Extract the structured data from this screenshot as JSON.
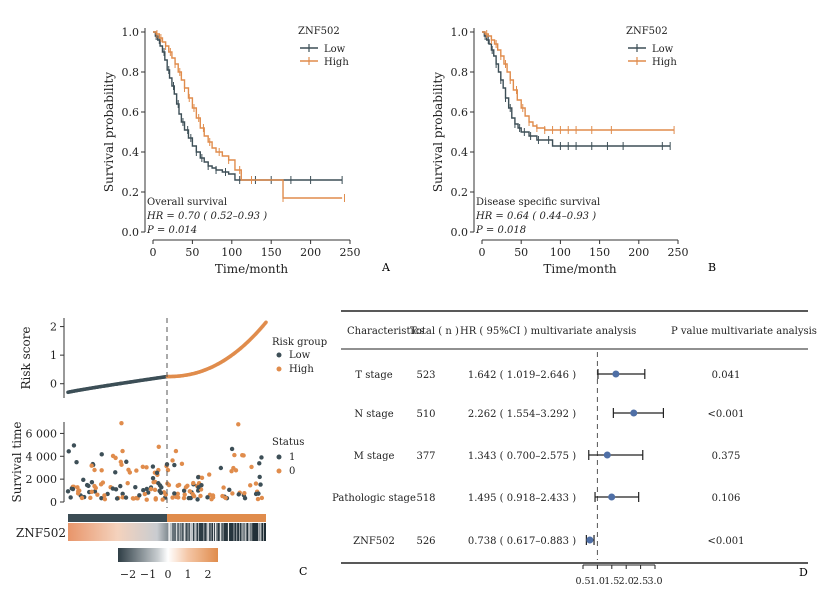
{
  "panel_labels": {
    "a": "A",
    "b": "B",
    "c": "C",
    "d": "D"
  },
  "colors": {
    "low": "#3d4f57",
    "high": "#e08c4c",
    "axis": "#333333",
    "ref": "#555555",
    "point": "#4f6fa6"
  },
  "chart_data": [
    {
      "type": "line",
      "panel": "A",
      "xlabel": "Time/month",
      "ylabel": "Survival probability",
      "xlim": [
        0,
        250
      ],
      "ylim": [
        0,
        1
      ],
      "xticks": [
        {
          "v": 0,
          "label": "0"
        },
        {
          "v": 50,
          "label": "50"
        },
        {
          "v": 100,
          "label": "100"
        },
        {
          "v": 150,
          "label": "150"
        },
        {
          "v": 200,
          "label": "200"
        },
        {
          "v": 250,
          "label": "250"
        }
      ],
      "yticks": [
        {
          "v": 0,
          "label": "0.0"
        },
        {
          "v": 0.2,
          "label": "0.2"
        },
        {
          "v": 0.4,
          "label": "0.4"
        },
        {
          "v": 0.6,
          "label": "0.6"
        },
        {
          "v": 0.8,
          "label": "0.8"
        },
        {
          "v": 1,
          "label": "1.0"
        }
      ],
      "legend": {
        "title": "ZNF502",
        "position": "top-right",
        "entries": [
          "Low",
          "High"
        ]
      },
      "annotations": [
        "Overall survival",
        "HR = 0.70 ( 0.52–0.93 )",
        "P = 0.014"
      ],
      "series": [
        {
          "name": "Low",
          "color_key": "low",
          "x": [
            0,
            3,
            6,
            9,
            12,
            15,
            18,
            21,
            24,
            27,
            30,
            33,
            36,
            40,
            45,
            50,
            55,
            60,
            65,
            70,
            75,
            80,
            88,
            96,
            104,
            115,
            125,
            140,
            160,
            200,
            240
          ],
          "y": [
            1.0,
            0.98,
            0.96,
            0.93,
            0.9,
            0.86,
            0.81,
            0.77,
            0.73,
            0.69,
            0.64,
            0.59,
            0.55,
            0.51,
            0.47,
            0.43,
            0.4,
            0.37,
            0.35,
            0.33,
            0.32,
            0.31,
            0.3,
            0.29,
            0.26,
            0.26,
            0.26,
            0.26,
            0.26,
            0.26,
            0.26
          ],
          "censor_x": [
            4,
            8,
            14,
            20,
            26,
            32,
            38,
            44,
            48,
            55,
            62,
            70,
            80,
            92,
            110,
            130,
            150,
            175,
            200,
            240
          ]
        },
        {
          "name": "High",
          "color_key": "high",
          "x": [
            0,
            4,
            8,
            12,
            16,
            20,
            24,
            28,
            32,
            36,
            40,
            45,
            50,
            55,
            60,
            65,
            70,
            75,
            80,
            88,
            96,
            104,
            112,
            125,
            150,
            163,
            165,
            200,
            240
          ],
          "y": [
            1.0,
            0.99,
            0.97,
            0.95,
            0.93,
            0.9,
            0.87,
            0.84,
            0.8,
            0.76,
            0.72,
            0.67,
            0.62,
            0.57,
            0.52,
            0.48,
            0.45,
            0.42,
            0.4,
            0.38,
            0.36,
            0.31,
            0.26,
            0.26,
            0.26,
            0.26,
            0.17,
            0.17,
            0.17
          ],
          "censor_x": [
            5,
            10,
            16,
            22,
            28,
            34,
            40,
            46,
            52,
            58,
            64,
            72,
            84,
            96,
            110,
            125,
            165,
            243
          ]
        }
      ]
    },
    {
      "type": "line",
      "panel": "B",
      "xlabel": "Time/month",
      "ylabel": "Survival probability",
      "xlim": [
        0,
        250
      ],
      "ylim": [
        0,
        1
      ],
      "xticks": [
        {
          "v": 0,
          "label": "0"
        },
        {
          "v": 50,
          "label": "50"
        },
        {
          "v": 100,
          "label": "100"
        },
        {
          "v": 150,
          "label": "150"
        },
        {
          "v": 200,
          "label": "200"
        },
        {
          "v": 250,
          "label": "250"
        }
      ],
      "yticks": [
        {
          "v": 0,
          "label": "0.0"
        },
        {
          "v": 0.2,
          "label": "0.2"
        },
        {
          "v": 0.4,
          "label": "0.4"
        },
        {
          "v": 0.6,
          "label": "0.6"
        },
        {
          "v": 0.8,
          "label": "0.8"
        },
        {
          "v": 1,
          "label": "1.0"
        }
      ],
      "legend": {
        "title": "ZNF502",
        "position": "top-right",
        "entries": [
          "Low",
          "High"
        ]
      },
      "annotations": [
        "Disease specific survival",
        "HR = 0.64 ( 0.44–0.93 )",
        "P = 0.018"
      ],
      "series": [
        {
          "name": "Low",
          "color_key": "low",
          "x": [
            0,
            3,
            6,
            9,
            12,
            15,
            18,
            21,
            24,
            27,
            30,
            34,
            38,
            42,
            46,
            50,
            60,
            70,
            80,
            90,
            100,
            240
          ],
          "y": [
            1.0,
            0.98,
            0.96,
            0.94,
            0.91,
            0.88,
            0.84,
            0.8,
            0.76,
            0.72,
            0.67,
            0.62,
            0.57,
            0.54,
            0.52,
            0.5,
            0.48,
            0.46,
            0.46,
            0.43,
            0.43,
            0.43
          ],
          "censor_x": [
            4,
            8,
            13,
            18,
            24,
            30,
            36,
            42,
            48,
            54,
            62,
            72,
            85,
            100,
            110,
            120,
            140,
            160,
            180,
            230,
            240
          ]
        },
        {
          "name": "High",
          "color_key": "high",
          "x": [
            0,
            4,
            8,
            12,
            16,
            20,
            24,
            28,
            32,
            36,
            40,
            45,
            50,
            55,
            60,
            65,
            70,
            80,
            90,
            245
          ],
          "y": [
            1.0,
            0.99,
            0.98,
            0.96,
            0.94,
            0.91,
            0.88,
            0.84,
            0.8,
            0.76,
            0.71,
            0.66,
            0.62,
            0.58,
            0.55,
            0.53,
            0.52,
            0.51,
            0.51,
            0.51
          ],
          "censor_x": [
            6,
            12,
            18,
            24,
            30,
            36,
            44,
            52,
            60,
            70,
            80,
            90,
            100,
            110,
            120,
            140,
            165,
            245
          ]
        }
      ]
    },
    {
      "type": "scatter",
      "panel": "C-risk",
      "ylabel": "Risk score",
      "ylim": [
        -0.5,
        2.3
      ],
      "yticks": [
        {
          "v": 0,
          "label": "0"
        },
        {
          "v": 1,
          "label": "1"
        },
        {
          "v": 2,
          "label": "2"
        }
      ],
      "legend": {
        "title": "Risk group",
        "position": "right",
        "entries": [
          "Low",
          "High"
        ]
      },
      "n": 526,
      "cutoff_fraction": 0.5,
      "curve": {
        "start": -0.3,
        "cut": 0.25,
        "end": 2.15
      }
    },
    {
      "type": "scatter",
      "panel": "C-status",
      "ylabel": "Survival time",
      "ylim": [
        0,
        7000
      ],
      "yticks": [
        {
          "v": 0,
          "label": "0"
        },
        {
          "v": 2000,
          "label": "2 000"
        },
        {
          "v": 4000,
          "label": "4 000"
        },
        {
          "v": 6000,
          "label": "6 000"
        }
      ],
      "legend": {
        "title": "Status",
        "position": "right",
        "entries": [
          "1",
          "0"
        ]
      }
    },
    {
      "type": "heatmap",
      "panel": "C-heatmap",
      "row_label": "ZNF502",
      "colorbar": {
        "ticks": [
          {
            "v": -2,
            "label": "−2"
          },
          {
            "v": -1,
            "label": "−1"
          },
          {
            "v": 0,
            "label": "0"
          },
          {
            "v": 1,
            "label": "1"
          },
          {
            "v": 2,
            "label": "2"
          }
        ]
      }
    },
    {
      "type": "table",
      "panel": "D",
      "headers": {
        "char": "Characteristics",
        "total": "Total ( n )",
        "hr": "HR ( 95%CI ) multivariate analysis",
        "p": "P value multivariate analysis"
      },
      "rows": [
        {
          "label": "T stage",
          "total": "523",
          "hr_text": "1.642 ( 1.019–2.646 )",
          "p": "0.041",
          "hr": 1.642,
          "lo": 1.019,
          "hi": 2.646
        },
        {
          "label": "N stage",
          "total": "510",
          "hr_text": "2.262 ( 1.554–3.292 )",
          "p": "<0.001",
          "hr": 2.262,
          "lo": 1.554,
          "hi": 3.292
        },
        {
          "label": "M stage",
          "total": "377",
          "hr_text": "1.343 ( 0.700–2.575 )",
          "p": "0.375",
          "hr": 1.343,
          "lo": 0.7,
          "hi": 2.575
        },
        {
          "label": "Pathologic stage",
          "total": "518",
          "hr_text": "1.495 ( 0.918–2.433 )",
          "p": "0.106",
          "hr": 1.495,
          "lo": 0.918,
          "hi": 2.433
        },
        {
          "label": "ZNF502",
          "total": "526",
          "hr_text": "0.738 ( 0.617–0.883 )",
          "p": "<0.001",
          "hr": 0.738,
          "lo": 0.617,
          "hi": 0.883
        }
      ],
      "xlim": [
        0.5,
        3.0
      ],
      "xticks": [
        {
          "v": 0.5,
          "label": "0.5"
        },
        {
          "v": 1.0,
          "label": "1.0"
        },
        {
          "v": 1.5,
          "label": "1.5"
        },
        {
          "v": 2.0,
          "label": "2.0"
        },
        {
          "v": 2.5,
          "label": "2.5"
        },
        {
          "v": 3.0,
          "label": "3.0"
        }
      ],
      "ref_line": 1.0
    }
  ]
}
